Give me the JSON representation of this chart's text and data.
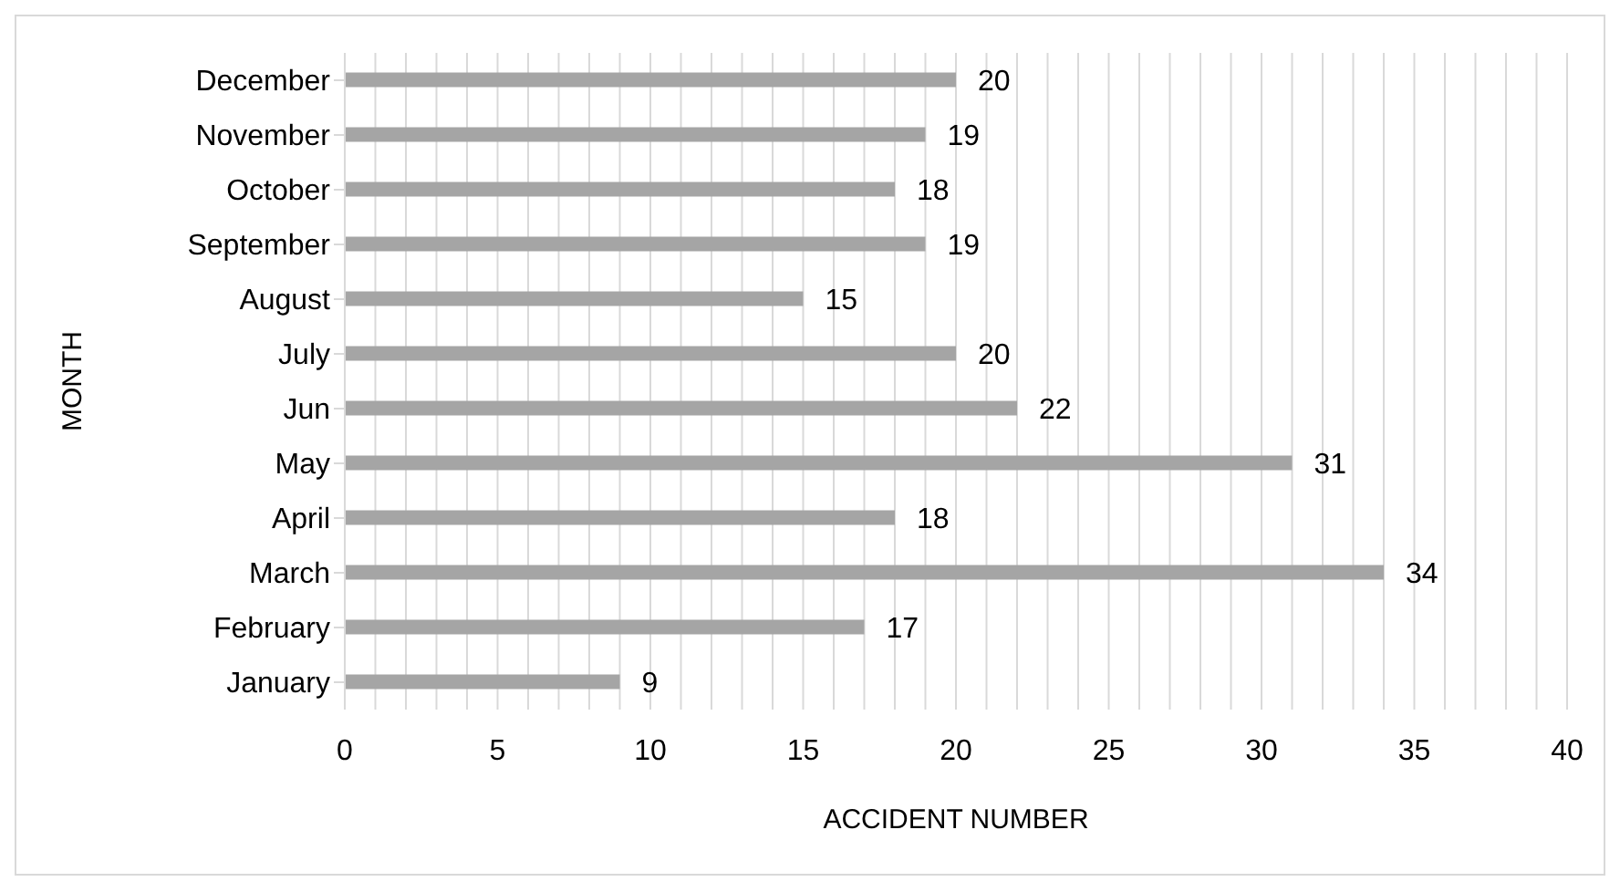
{
  "chart_data": {
    "type": "bar",
    "orientation": "horizontal",
    "xlabel": "ACCIDENT NUMBER",
    "ylabel": "MONTH",
    "categories": [
      "December",
      "November",
      "October",
      "September",
      "August",
      "July",
      "Jun",
      "May",
      "April",
      "March",
      "February",
      "January"
    ],
    "values": [
      20,
      19,
      18,
      19,
      15,
      20,
      22,
      31,
      18,
      34,
      17,
      9
    ],
    "color": "#a5a5a5",
    "xlim": [
      0,
      40
    ],
    "xticks": [
      0,
      {
        "value": 1,
        "label": null
      },
      {
        "value": 2,
        "label": null
      },
      {
        "value": 3,
        "label": null
      },
      {
        "value": 4,
        "label": null
      },
      5,
      {
        "value": 6,
        "label": null
      },
      {
        "value": 7,
        "label": null
      },
      {
        "value": 8,
        "label": null
      },
      {
        "value": 9,
        "label": null
      },
      10,
      {
        "value": 11,
        "label": null
      },
      {
        "value": 12,
        "label": null
      },
      {
        "value": 13,
        "label": null
      },
      {
        "value": 14,
        "label": null
      },
      15,
      {
        "value": 16,
        "label": null
      },
      {
        "value": 17,
        "label": null
      },
      {
        "value": 18,
        "label": null
      },
      {
        "value": 19,
        "label": null
      },
      20,
      {
        "value": 21,
        "label": null
      },
      {
        "value": 22,
        "label": null
      },
      {
        "value": 23,
        "label": null
      },
      {
        "value": 24,
        "label": null
      },
      25,
      {
        "value": 26,
        "label": null
      },
      {
        "value": 27,
        "label": null
      },
      {
        "value": 28,
        "label": null
      },
      {
        "value": 29,
        "label": null
      },
      30,
      {
        "value": 31,
        "label": null
      },
      {
        "value": 32,
        "label": null
      },
      {
        "value": 33,
        "label": null
      },
      {
        "value": 34,
        "label": null
      },
      35,
      {
        "value": 36,
        "label": null
      },
      {
        "value": 37,
        "label": null
      },
      {
        "value": 38,
        "label": null
      },
      {
        "value": 39,
        "label": null
      },
      40
    ],
    "grid": "x",
    "data_labels": true
  }
}
